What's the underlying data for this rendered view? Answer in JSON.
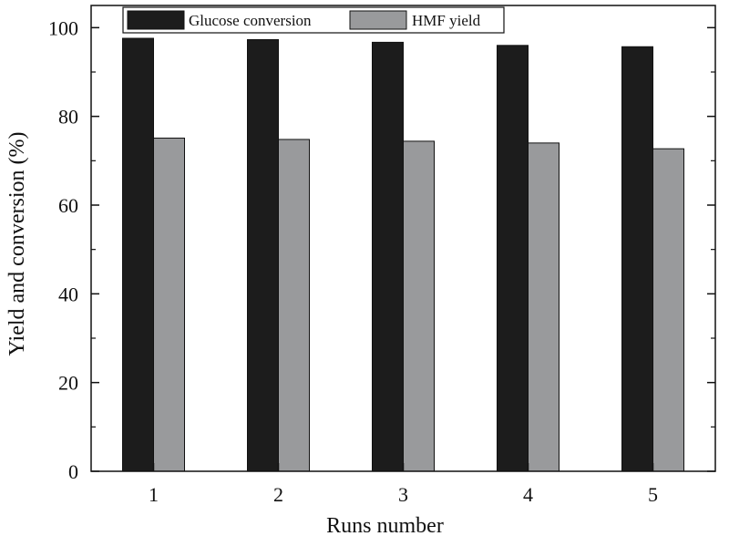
{
  "chart_data": {
    "type": "bar",
    "categories": [
      "1",
      "2",
      "3",
      "4",
      "5"
    ],
    "series": [
      {
        "name": "Glucose conversion",
        "values": [
          97.6,
          97.3,
          96.7,
          96.0,
          95.7
        ],
        "color": "#1c1c1c"
      },
      {
        "name": "HMF yield",
        "values": [
          75.1,
          74.8,
          74.4,
          74.0,
          72.7
        ],
        "color": "#999a9c"
      }
    ],
    "xlabel": "Runs number",
    "ylabel": "Yield and conversion (%)",
    "ylim": [
      0,
      105
    ],
    "yticks": [
      0,
      20,
      40,
      60,
      80,
      100
    ],
    "grid": false,
    "legend_position": "top"
  }
}
